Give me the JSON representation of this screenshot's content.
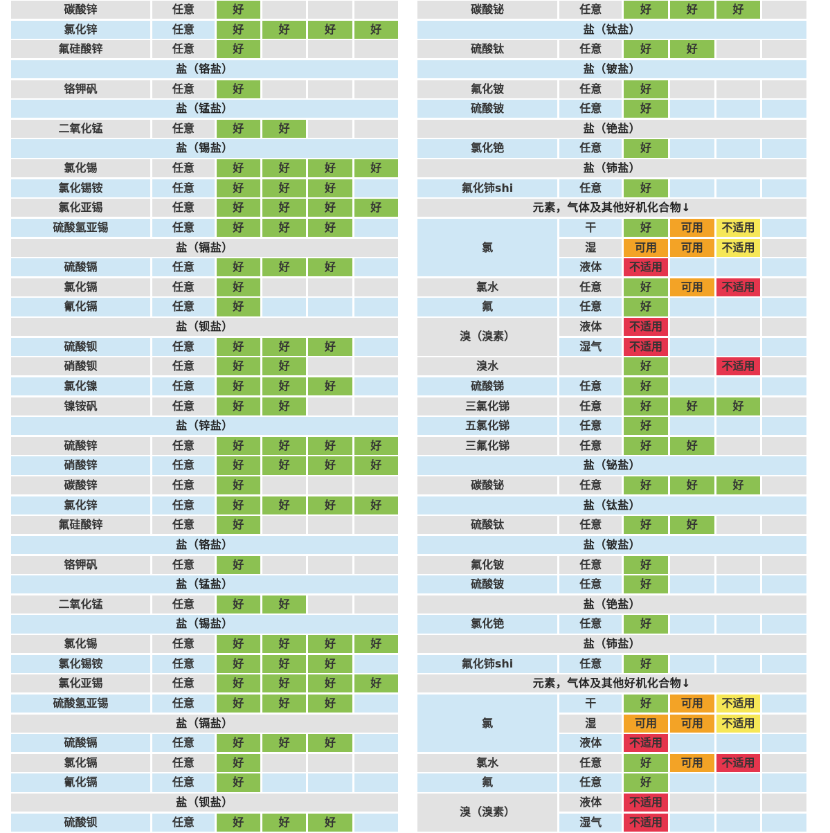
{
  "palette": {
    "row_gray": "#e2e2e2",
    "row_blue": "#cfe7f5",
    "rating_good_bg": "#8cc152",
    "rating_usable_bg": "#f3a326",
    "rating_na_yellow_bg": "#f6e757",
    "rating_na_red_bg": "#e5354d",
    "text": "#333333"
  },
  "labels": {
    "good": "好",
    "usable": "可用",
    "not_applicable": "不适用"
  },
  "left_table": {
    "rows": [
      {
        "type": "item",
        "name": "碳酸锌",
        "cond": "任意",
        "ratings": [
          "good",
          "",
          "",
          ""
        ]
      },
      {
        "type": "item",
        "name": "氯化锌",
        "cond": "任意",
        "ratings": [
          "good",
          "good",
          "good",
          "good"
        ]
      },
      {
        "type": "item",
        "name": "氟硅酸锌",
        "cond": "任意",
        "ratings": [
          "good",
          "",
          "",
          ""
        ]
      },
      {
        "type": "section",
        "label": "盐（铬盐）"
      },
      {
        "type": "item",
        "name": "铬钾矾",
        "cond": "任意",
        "ratings": [
          "good",
          "",
          "",
          ""
        ]
      },
      {
        "type": "section",
        "label": "盐（锰盐）"
      },
      {
        "type": "item",
        "name": "二氧化锰",
        "cond": "任意",
        "ratings": [
          "good",
          "good",
          "",
          ""
        ]
      },
      {
        "type": "section",
        "label": "盐（锡盐）"
      },
      {
        "type": "item",
        "name": "氯化锡",
        "cond": "任意",
        "ratings": [
          "good",
          "good",
          "good",
          "good"
        ]
      },
      {
        "type": "item",
        "name": "氯化锡铵",
        "cond": "任意",
        "ratings": [
          "good",
          "good",
          "good",
          ""
        ]
      },
      {
        "type": "item",
        "name": "氯化亚锡",
        "cond": "任意",
        "ratings": [
          "good",
          "good",
          "good",
          "good"
        ]
      },
      {
        "type": "item",
        "name": "硫酸氢亚锡",
        "cond": "任意",
        "ratings": [
          "good",
          "good",
          "good",
          ""
        ]
      },
      {
        "type": "section",
        "label": "盐（镉盐）"
      },
      {
        "type": "item",
        "name": "硫酸镉",
        "cond": "任意",
        "ratings": [
          "good",
          "good",
          "good",
          ""
        ]
      },
      {
        "type": "item",
        "name": "氯化镉",
        "cond": "任意",
        "ratings": [
          "good",
          "",
          "",
          ""
        ]
      },
      {
        "type": "item",
        "name": "氰化镉",
        "cond": "任意",
        "ratings": [
          "good",
          "",
          "",
          ""
        ]
      },
      {
        "type": "section",
        "label": "盐（钡盐）"
      },
      {
        "type": "item",
        "name": "硫酸钡",
        "cond": "任意",
        "ratings": [
          "good",
          "good",
          "good",
          ""
        ]
      },
      {
        "type": "item",
        "name": "硝酸钡",
        "cond": "任意",
        "ratings": [
          "good",
          "good",
          "",
          ""
        ]
      },
      {
        "type": "item",
        "name": "氯化镍",
        "cond": "任意",
        "ratings": [
          "good",
          "good",
          "good",
          ""
        ]
      },
      {
        "type": "item",
        "name": "镍铵矾",
        "cond": "任意",
        "ratings": [
          "good",
          "good",
          "",
          ""
        ]
      },
      {
        "type": "section",
        "label": "盐（锌盐）"
      },
      {
        "type": "item",
        "name": "硫酸锌",
        "cond": "任意",
        "ratings": [
          "good",
          "good",
          "good",
          "good"
        ]
      },
      {
        "type": "item",
        "name": "硝酸锌",
        "cond": "任意",
        "ratings": [
          "good",
          "good",
          "good",
          "good"
        ]
      },
      {
        "type": "item",
        "name": "碳酸锌",
        "cond": "任意",
        "ratings": [
          "good",
          "",
          "",
          ""
        ]
      },
      {
        "type": "item",
        "name": "氯化锌",
        "cond": "任意",
        "ratings": [
          "good",
          "good",
          "good",
          "good"
        ]
      },
      {
        "type": "item",
        "name": "氟硅酸锌",
        "cond": "任意",
        "ratings": [
          "good",
          "",
          "",
          ""
        ]
      },
      {
        "type": "section",
        "label": "盐（铬盐）"
      },
      {
        "type": "item",
        "name": "铬钾矾",
        "cond": "任意",
        "ratings": [
          "good",
          "",
          "",
          ""
        ]
      },
      {
        "type": "section",
        "label": "盐（锰盐）"
      },
      {
        "type": "item",
        "name": "二氧化锰",
        "cond": "任意",
        "ratings": [
          "good",
          "good",
          "",
          ""
        ]
      },
      {
        "type": "section",
        "label": "盐（锡盐）"
      },
      {
        "type": "item",
        "name": "氯化锡",
        "cond": "任意",
        "ratings": [
          "good",
          "good",
          "good",
          "good"
        ]
      },
      {
        "type": "item",
        "name": "氯化锡铵",
        "cond": "任意",
        "ratings": [
          "good",
          "good",
          "good",
          ""
        ]
      },
      {
        "type": "item",
        "name": "氯化亚锡",
        "cond": "任意",
        "ratings": [
          "good",
          "good",
          "good",
          "good"
        ]
      },
      {
        "type": "item",
        "name": "硫酸氢亚锡",
        "cond": "任意",
        "ratings": [
          "good",
          "good",
          "good",
          ""
        ]
      },
      {
        "type": "section",
        "label": "盐（镉盐）"
      },
      {
        "type": "item",
        "name": "硫酸镉",
        "cond": "任意",
        "ratings": [
          "good",
          "good",
          "good",
          ""
        ]
      },
      {
        "type": "item",
        "name": "氯化镉",
        "cond": "任意",
        "ratings": [
          "good",
          "",
          "",
          ""
        ]
      },
      {
        "type": "item",
        "name": "氰化镉",
        "cond": "任意",
        "ratings": [
          "good",
          "",
          "",
          ""
        ]
      },
      {
        "type": "section",
        "label": "盐（钡盐）"
      },
      {
        "type": "item",
        "name": "硫酸钡",
        "cond": "任意",
        "ratings": [
          "good",
          "good",
          "good",
          ""
        ]
      }
    ]
  },
  "right_table": {
    "rows": [
      {
        "type": "item",
        "name": "碳酸铋",
        "cond": "任意",
        "ratings": [
          "good",
          "good",
          "good",
          ""
        ]
      },
      {
        "type": "section",
        "label": "盐（钛盐）"
      },
      {
        "type": "item",
        "name": "硫酸钛",
        "cond": "任意",
        "ratings": [
          "good",
          "good",
          "",
          ""
        ]
      },
      {
        "type": "section",
        "label": "盐（铍盐）"
      },
      {
        "type": "item",
        "name": "氟化铍",
        "cond": "任意",
        "ratings": [
          "good",
          "",
          "",
          ""
        ]
      },
      {
        "type": "item",
        "name": "硫酸铍",
        "cond": "任意",
        "ratings": [
          "good",
          "",
          "",
          ""
        ]
      },
      {
        "type": "section",
        "label": "盐（铯盐）"
      },
      {
        "type": "item",
        "name": "氯化铯",
        "cond": "任意",
        "ratings": [
          "good",
          "",
          "",
          ""
        ]
      },
      {
        "type": "section",
        "label": "盐（铈盐）"
      },
      {
        "type": "item",
        "name": "氟化铈shi",
        "cond": "任意",
        "ratings": [
          "good",
          "",
          "",
          ""
        ]
      },
      {
        "type": "section",
        "label": "元素，气体及其他好机化合物↓"
      },
      {
        "type": "group",
        "name": "氯",
        "subrows": [
          {
            "cond": "干",
            "ratings": [
              "good",
              "usable",
              "na_yellow",
              ""
            ]
          },
          {
            "cond": "湿",
            "ratings": [
              "usable",
              "usable",
              "na_yellow",
              ""
            ]
          },
          {
            "cond": "液体",
            "ratings": [
              "na_red",
              "",
              "",
              ""
            ]
          }
        ]
      },
      {
        "type": "item",
        "name": "氯水",
        "cond": "任意",
        "ratings": [
          "good",
          "usable",
          "na_red",
          ""
        ]
      },
      {
        "type": "item",
        "name": "氟",
        "cond": "任意",
        "ratings": [
          "good",
          "",
          "",
          ""
        ]
      },
      {
        "type": "group",
        "name": "溴（溴素）",
        "subrows": [
          {
            "cond": "液体",
            "ratings": [
              "na_red",
              "",
              "",
              ""
            ]
          },
          {
            "cond": "湿气",
            "ratings": [
              "na_red",
              "",
              "",
              ""
            ]
          }
        ]
      },
      {
        "type": "item",
        "name": "溴水",
        "cond": "",
        "ratings": [
          "good",
          "",
          "na_red",
          ""
        ]
      },
      {
        "type": "item",
        "name": "硫酸锑",
        "cond": "任意",
        "ratings": [
          "good",
          "",
          "",
          ""
        ]
      },
      {
        "type": "item",
        "name": "三氯化锑",
        "cond": "任意",
        "ratings": [
          "good",
          "good",
          "good",
          ""
        ]
      },
      {
        "type": "item",
        "name": "五氯化锑",
        "cond": "任意",
        "ratings": [
          "good",
          "",
          "",
          ""
        ]
      },
      {
        "type": "item",
        "name": "三氟化锑",
        "cond": "任意",
        "ratings": [
          "good",
          "good",
          "",
          ""
        ]
      },
      {
        "type": "section",
        "label": "盐（铋盐）"
      },
      {
        "type": "item",
        "name": "碳酸铋",
        "cond": "任意",
        "ratings": [
          "good",
          "good",
          "good",
          ""
        ]
      },
      {
        "type": "section",
        "label": "盐（钛盐）"
      },
      {
        "type": "item",
        "name": "硫酸钛",
        "cond": "任意",
        "ratings": [
          "good",
          "good",
          "",
          ""
        ]
      },
      {
        "type": "section",
        "label": "盐（铍盐）"
      },
      {
        "type": "item",
        "name": "氟化铍",
        "cond": "任意",
        "ratings": [
          "good",
          "",
          "",
          ""
        ]
      },
      {
        "type": "item",
        "name": "硫酸铍",
        "cond": "任意",
        "ratings": [
          "good",
          "",
          "",
          ""
        ]
      },
      {
        "type": "section",
        "label": "盐（铯盐）"
      },
      {
        "type": "item",
        "name": "氯化铯",
        "cond": "任意",
        "ratings": [
          "good",
          "",
          "",
          ""
        ]
      },
      {
        "type": "section",
        "label": "盐（铈盐）"
      },
      {
        "type": "item",
        "name": "氟化铈shi",
        "cond": "任意",
        "ratings": [
          "good",
          "",
          "",
          ""
        ]
      },
      {
        "type": "section",
        "label": "元素，气体及其他好机化合物↓"
      },
      {
        "type": "group",
        "name": "氯",
        "subrows": [
          {
            "cond": "干",
            "ratings": [
              "good",
              "usable",
              "na_yellow",
              ""
            ]
          },
          {
            "cond": "湿",
            "ratings": [
              "usable",
              "usable",
              "na_yellow",
              ""
            ]
          },
          {
            "cond": "液体",
            "ratings": [
              "na_red",
              "",
              "",
              ""
            ]
          }
        ]
      },
      {
        "type": "item",
        "name": "氯水",
        "cond": "任意",
        "ratings": [
          "good",
          "usable",
          "na_red",
          ""
        ]
      },
      {
        "type": "item",
        "name": "氟",
        "cond": "任意",
        "ratings": [
          "good",
          "",
          "",
          ""
        ]
      },
      {
        "type": "group",
        "name": "溴（溴素）",
        "subrows": [
          {
            "cond": "液体",
            "ratings": [
              "na_red",
              "",
              "",
              ""
            ]
          },
          {
            "cond": "湿气",
            "ratings": [
              "na_red",
              "",
              "",
              ""
            ]
          }
        ]
      }
    ]
  }
}
